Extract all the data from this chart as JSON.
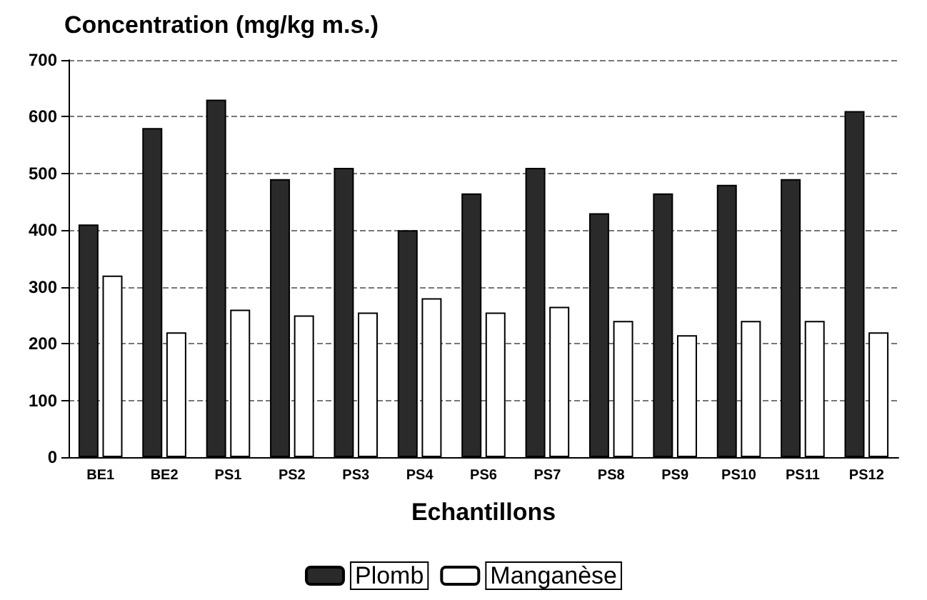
{
  "chart_data": {
    "type": "bar",
    "title": "Concentration (mg/kg m.s.)",
    "xlabel": "Echantillons",
    "categories": [
      "BE1",
      "BE2",
      "PS1",
      "PS2",
      "PS3",
      "PS4",
      "PS6",
      "PS7",
      "PS8",
      "PS9",
      "PS10",
      "PS11",
      "PS12"
    ],
    "series": [
      {
        "name": "Plomb",
        "color": "#2a2a2a",
        "values": [
          410,
          580,
          630,
          490,
          510,
          400,
          465,
          510,
          430,
          465,
          480,
          490,
          610
        ]
      },
      {
        "name": "Manganèse",
        "color": "#ffffff",
        "values": [
          320,
          220,
          260,
          250,
          255,
          280,
          255,
          265,
          240,
          215,
          240,
          240,
          220
        ]
      }
    ],
    "ylim": [
      0,
      700
    ],
    "yticks": [
      0,
      100,
      200,
      300,
      400,
      500,
      600,
      700
    ],
    "grid": "y",
    "line_style": "dashed",
    "legend": "bottom"
  }
}
